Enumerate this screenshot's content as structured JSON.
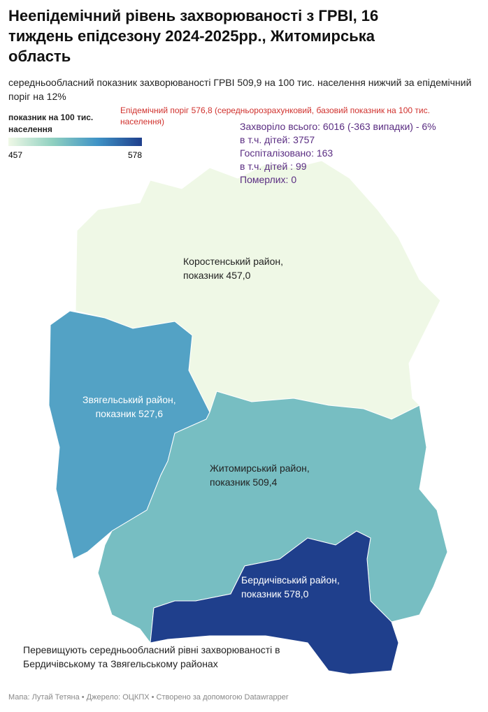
{
  "title": "Неепідемічний рівень захворюваності з ГРВІ, 16 тиждень  епідсезону 2024-2025рр., Житомирська область",
  "subtitle": "середньообласний показник захворюваності ГРВІ  509,9 на 100 тис. населення нижчий за епідемічний поріг  на 12%",
  "legend": {
    "title": "показник на 100 тис. населення",
    "min": 457,
    "max": 578,
    "colors": [
      "#eff8e6",
      "#8fd0c0",
      "#3f93c6",
      "#1f3f8c"
    ]
  },
  "threshold_note": "Епідемічний поріг 576,8 (середньорозрахунковий, базовий показник на 100 тис. населення)",
  "stats": [
    "Захворіло всього: 6016 (-363 випадки) - 6%",
    "в т.ч. дітей: 3757",
    "Госпіталізовано: 163",
    "в т.ч. дітей : 99",
    "Померлих: 0"
  ],
  "regions": [
    {
      "name": "Коростенський район,",
      "label": "показник 457,0",
      "value": 457.0
    },
    {
      "name": "Звягельський район,",
      "label": "показник  527,6",
      "value": 527.6
    },
    {
      "name": "Житомирський район,",
      "label": "показник 509,4",
      "value": 509.4
    },
    {
      "name": "Бердичівський район,",
      "label": "показник 578,0",
      "value": 578.0
    }
  ],
  "note": "Перевищують середньообласний рівні захворюваності в Бердичівському та Звягельському районах",
  "footer": "Мапа: Лутай Тетяна • Джерело: ОЦКПХ • Створено за допомогою Datawrapper"
}
